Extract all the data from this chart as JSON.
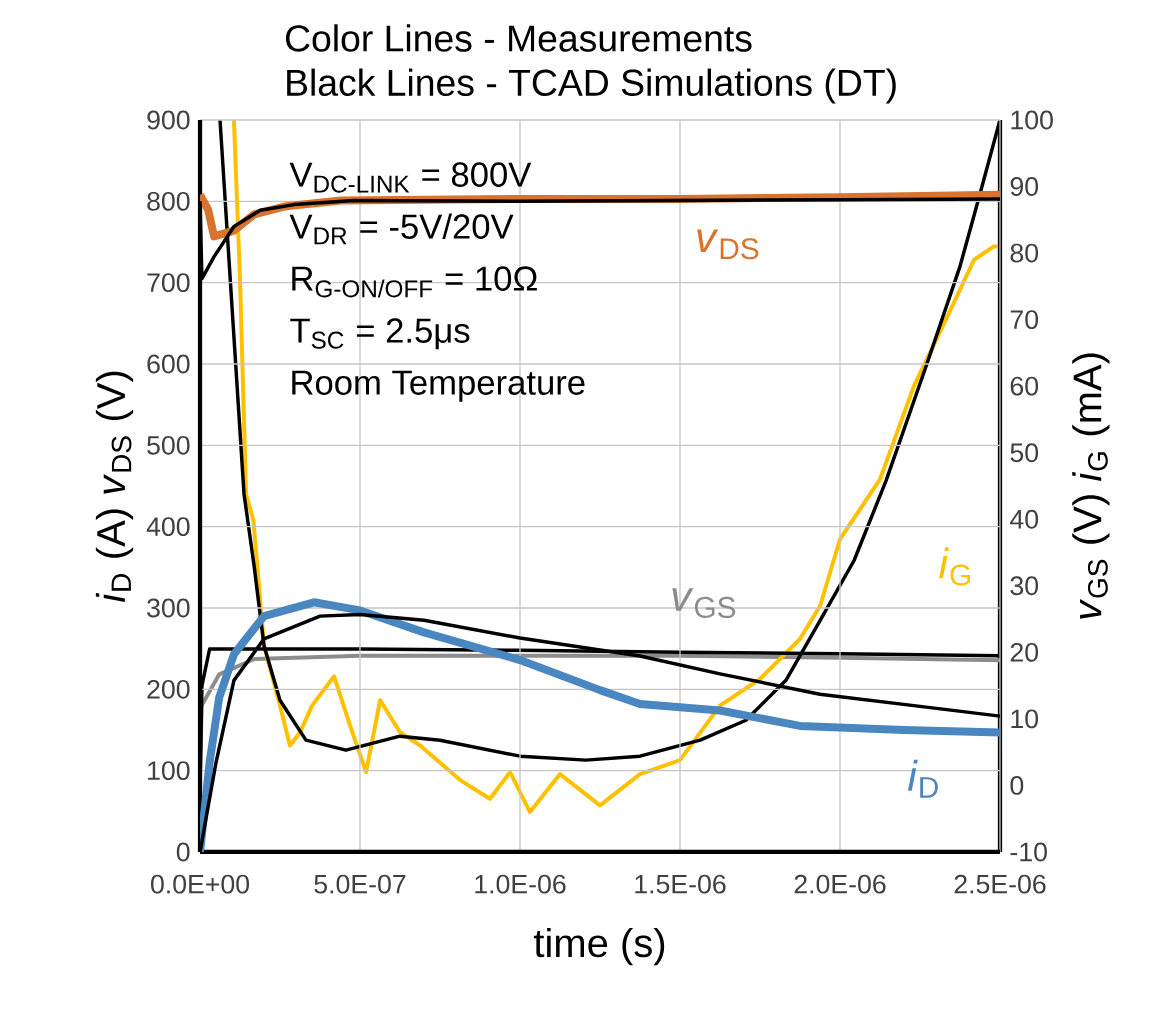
{
  "chart_data": {
    "type": "line",
    "title": "Color Lines - Measurements",
    "subtitle": "Black Lines - TCAD Simulations (DT)",
    "xlabel": "time (s)",
    "ylabel": "*i*$_{D}$ (A) *v*$_{DS}$ (V)",
    "y2label": "*v*$_{GS}$ (V) *i*$_{G}$ (mA)",
    "annotations": [
      "V$_{DC-LINK}$ = 800V",
      "V$_{DR}$ = -5V/20V",
      "R$_{G-ON/OFF}$ = 10Ω",
      "T$_{SC}$ = 2.5μs",
      "Room Temperature"
    ],
    "xlim": [
      0,
      2.5e-06
    ],
    "xticks": [
      {
        "value": 0,
        "label": "0.0E+00"
      },
      {
        "value": 5e-07,
        "label": "5.0E-07"
      },
      {
        "value": 1e-06,
        "label": "1.0E-06"
      },
      {
        "value": 1.5e-06,
        "label": "1.5E-06"
      },
      {
        "value": 2e-06,
        "label": "2.0E-06"
      },
      {
        "value": 2.5e-06,
        "label": "2.5E-06"
      }
    ],
    "ylim": [
      0,
      900
    ],
    "yticks": [
      0,
      100,
      200,
      300,
      400,
      500,
      600,
      700,
      800,
      900
    ],
    "y2lim": [
      -10,
      100
    ],
    "y2ticks": [
      -10,
      0,
      10,
      20,
      30,
      40,
      50,
      60,
      70,
      80,
      90,
      100
    ],
    "grid": true,
    "series": [
      {
        "name": "*v*$_{DS}$",
        "color": "#d9732e",
        "x": [
          0,
          2.5e-08,
          4.4e-08,
          1.06e-07,
          1.69e-07,
          2.69e-07,
          4.4e-07,
          1e-06,
          1.5e-06,
          2e-06,
          2.5e-06
        ],
        "values": [
          808,
          790,
          757,
          764,
          784,
          794,
          801,
          803,
          803,
          805,
          808
        ]
      },
      {
        "name": "*i*$_{D}$",
        "color": "#4a86c0",
        "x": [
          0,
          3e-08,
          6e-08,
          1.06e-07,
          2e-07,
          3.56e-07,
          5e-07,
          7e-07,
          1e-06,
          1.25e-06,
          1.375e-06,
          1.625e-06,
          1.875e-06,
          2.2e-06,
          2.5e-06
        ],
        "values": [
          0,
          110,
          190,
          243,
          290,
          307,
          297,
          270,
          236,
          199,
          182,
          174,
          155,
          150,
          147
        ]
      },
      {
        "name": "*v*$_{GS}$",
        "color": "#8c8c8c",
        "axis": "y2",
        "x": [
          0,
          5e-09,
          6e-08,
          1.7e-07,
          5e-07,
          1e-06,
          1.5e-06,
          2e-06,
          2.5e-06
        ],
        "values": [
          1,
          12,
          16.7,
          19,
          19.5,
          19.5,
          19.5,
          19.2,
          18.8
        ]
      },
      {
        "name": "*i*$_{G}$",
        "color": "#ffc000",
        "axis": "y2",
        "x": [
          1.06e-07,
          1.25e-07,
          1.44e-07,
          1.67e-07,
          2e-07,
          2.5e-07,
          2.81e-07,
          3.13e-07,
          3.5e-07,
          4.19e-07,
          4.69e-07,
          5.19e-07,
          5.63e-07,
          6.25e-07,
          6.88e-07,
          8.13e-07,
          9.06e-07,
          9.69e-07,
          1.031e-06,
          1.125e-06,
          1.25e-06,
          1.375e-06,
          1.5e-06,
          1.625e-06,
          1.75e-06,
          1.875e-06,
          1.938e-06,
          2e-06,
          2.125e-06,
          2.231e-06,
          2.331e-06,
          2.419e-06,
          2.481e-06,
          2.494e-06
        ],
        "values": [
          100,
          76,
          43.7,
          39.8,
          21,
          12,
          6,
          8,
          12,
          16.4,
          9,
          2,
          12.8,
          8,
          6,
          0.8,
          -2,
          2,
          -4,
          1.7,
          -3,
          1.7,
          3.8,
          12,
          16,
          22,
          27,
          37,
          46,
          60,
          70,
          79,
          81,
          81
        ]
      },
      {
        "color": "#000000",
        "x": [
          0,
          6e-09,
          4.4e-08,
          1.06e-07,
          1.88e-07,
          2.94e-07,
          4.81e-07,
          1e-06,
          1.5e-06,
          2e-06,
          2.5e-06
        ],
        "values": [
          800,
          705,
          732,
          769,
          789,
          796,
          801,
          800,
          801,
          802,
          803
        ]
      },
      {
        "color": "#000000",
        "x": [
          0,
          5e-08,
          1.06e-07,
          2e-07,
          3.75e-07,
          5e-07,
          7e-07,
          1e-06,
          1.375e-06,
          1.625e-06,
          1.9375e-06,
          2.25e-06,
          2.5e-06
        ],
        "values": [
          0,
          110,
          211,
          262,
          290,
          292,
          285,
          263,
          241,
          219,
          194,
          179,
          167
        ]
      },
      {
        "color": "#000000",
        "axis": "y2",
        "x": [
          0,
          6e-09,
          3e-08,
          5e-07,
          1e-06,
          1.5e-06,
          2e-06,
          2.5e-06
        ],
        "values": [
          0,
          15,
          20.5,
          20.5,
          20.3,
          20,
          19.8,
          19.5
        ]
      },
      {
        "color": "#000000",
        "axis": "y2",
        "x": [
          6.25e-08,
          1.375e-07,
          1.69e-07,
          2e-07,
          2.5e-07,
          3.31e-07,
          4.56e-07,
          6.25e-07,
          7.5e-07,
          1e-06,
          1.206e-06,
          1.375e-06,
          1.563e-06,
          1.706e-06,
          1.831e-06,
          1.938e-06,
          2.044e-06,
          2.144e-06,
          2.269e-06,
          2.375e-06,
          2.438e-06,
          2.5e-06
        ],
        "values": [
          100,
          43.8,
          33,
          21,
          12.8,
          6.8,
          5.3,
          7.4,
          6.8,
          4.4,
          3.8,
          4.4,
          6.8,
          9.8,
          15.8,
          24.8,
          33.8,
          45.8,
          63,
          78,
          89,
          100
        ]
      }
    ]
  }
}
